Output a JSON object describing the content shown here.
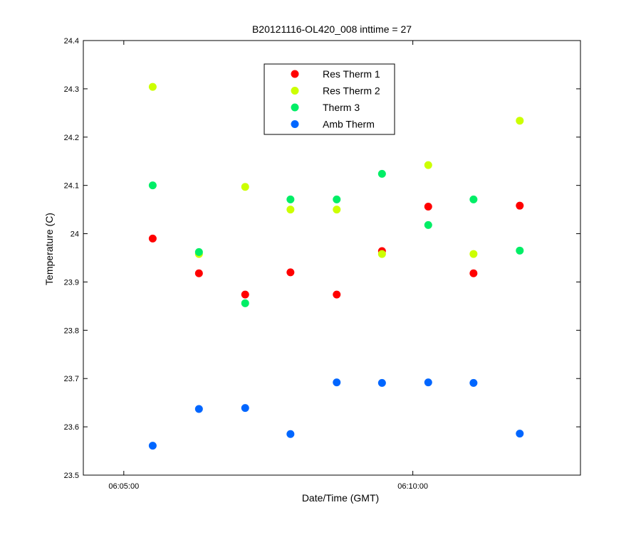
{
  "chart_data": {
    "type": "scatter",
    "title": "B20121116-OL420_008 inttime = 27",
    "xlabel": "Date/Time (GMT)",
    "ylabel": "Temperature (C)",
    "xlim": [
      "06:04:18",
      "06:12:54"
    ],
    "ylim": [
      23.5,
      24.4
    ],
    "x_ticks": [
      "06:05:00",
      "06:10:00"
    ],
    "y_ticks": [
      "23.5",
      "23.6",
      "23.7",
      "23.8",
      "23.9",
      "24",
      "24.1",
      "24.2",
      "24.3",
      "24.4"
    ],
    "grid": false,
    "legend_position": "top-center",
    "series": [
      {
        "name": "Res Therm 1",
        "color": "#ff0000",
        "points": [
          {
            "x": "06:05:30",
            "y": 23.99
          },
          {
            "x": "06:06:18",
            "y": 23.918
          },
          {
            "x": "06:07:06",
            "y": 23.874
          },
          {
            "x": "06:07:53",
            "y": 23.92
          },
          {
            "x": "06:08:41",
            "y": 23.874
          },
          {
            "x": "06:09:28",
            "y": 23.964
          },
          {
            "x": "06:10:16",
            "y": 24.056
          },
          {
            "x": "06:11:03",
            "y": 23.918
          },
          {
            "x": "06:11:51",
            "y": 24.058
          }
        ]
      },
      {
        "name": "Res Therm 2",
        "color": "#ccff00",
        "points": [
          {
            "x": "06:05:30",
            "y": 24.304
          },
          {
            "x": "06:06:18",
            "y": 23.958
          },
          {
            "x": "06:07:06",
            "y": 24.097
          },
          {
            "x": "06:07:53",
            "y": 24.05
          },
          {
            "x": "06:08:41",
            "y": 24.05
          },
          {
            "x": "06:09:28",
            "y": 23.958
          },
          {
            "x": "06:10:16",
            "y": 24.142
          },
          {
            "x": "06:11:03",
            "y": 23.958
          },
          {
            "x": "06:11:51",
            "y": 24.234
          }
        ]
      },
      {
        "name": "Therm 3",
        "color": "#00ee66",
        "points": [
          {
            "x": "06:05:30",
            "y": 24.1
          },
          {
            "x": "06:06:18",
            "y": 23.962
          },
          {
            "x": "06:07:06",
            "y": 23.856
          },
          {
            "x": "06:07:53",
            "y": 24.071
          },
          {
            "x": "06:08:41",
            "y": 24.071
          },
          {
            "x": "06:09:28",
            "y": 24.124
          },
          {
            "x": "06:10:16",
            "y": 24.018
          },
          {
            "x": "06:11:03",
            "y": 24.071
          },
          {
            "x": "06:11:51",
            "y": 23.965
          }
        ]
      },
      {
        "name": "Amb Therm",
        "color": "#0066ff",
        "points": [
          {
            "x": "06:05:30",
            "y": 23.561
          },
          {
            "x": "06:06:18",
            "y": 23.637
          },
          {
            "x": "06:07:06",
            "y": 23.639
          },
          {
            "x": "06:07:53",
            "y": 23.585
          },
          {
            "x": "06:08:41",
            "y": 23.692
          },
          {
            "x": "06:09:28",
            "y": 23.691
          },
          {
            "x": "06:10:16",
            "y": 23.692
          },
          {
            "x": "06:11:03",
            "y": 23.691
          },
          {
            "x": "06:11:51",
            "y": 23.586
          }
        ]
      }
    ]
  }
}
